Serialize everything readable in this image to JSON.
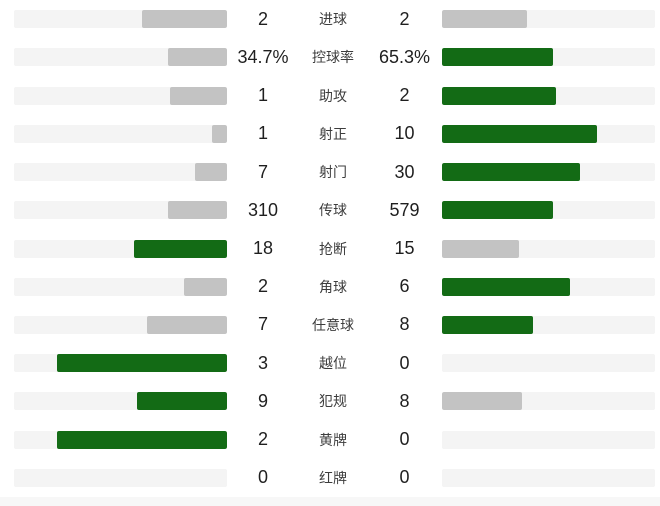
{
  "colors": {
    "win_bar": "#136b15",
    "lose_bar": "#c3c3c3",
    "track": "#f4f4f4",
    "value_text": "#1f1f1f",
    "label_text": "#3d3d3d",
    "footer_strip": "#f7f7f7"
  },
  "chart_data": {
    "type": "bar",
    "layout": "mirrored-horizontal",
    "legend_position": "none",
    "grid": false,
    "categories": [
      "进球",
      "控球率",
      "助攻",
      "射正",
      "射门",
      "传球",
      "抢断",
      "角球",
      "任意球",
      "越位",
      "犯规",
      "黄牌",
      "红牌"
    ],
    "series": [
      {
        "name": "left-team",
        "values": [
          "2",
          "34.7%",
          "1",
          "1",
          "7",
          "310",
          "18",
          "2",
          "7",
          "3",
          "9",
          "2",
          "0"
        ]
      },
      {
        "name": "right-team",
        "values": [
          "2",
          "65.3%",
          "2",
          "10",
          "30",
          "579",
          "15",
          "6",
          "8",
          "0",
          "8",
          "0",
          "0"
        ]
      }
    ],
    "bar_scale_rule": "bar width = value / (left + right) of row, max 80% of track",
    "highlight_rule": "higher value is green, lower or tied is gray, zero value shows no bar"
  }
}
